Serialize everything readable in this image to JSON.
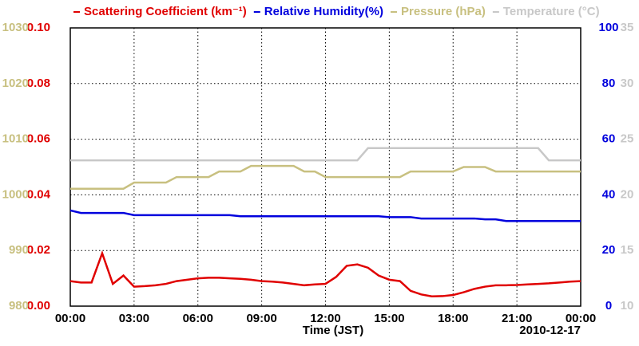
{
  "chart_data": {
    "type": "line",
    "x_label": "Time (JST)",
    "date": "2010-12-17",
    "x": [
      0,
      0.5,
      1,
      1.5,
      2,
      2.5,
      3,
      3.5,
      4,
      4.5,
      5,
      5.5,
      6,
      6.5,
      7,
      7.5,
      8,
      8.5,
      9,
      9.5,
      10,
      10.5,
      11,
      11.5,
      12,
      12.5,
      13,
      13.5,
      14,
      14.5,
      15,
      15.5,
      16,
      16.5,
      17,
      17.5,
      18,
      18.5,
      19,
      19.5,
      20,
      20.5,
      21,
      21.5,
      22,
      22.5,
      23,
      23.5,
      24
    ],
    "xlim": [
      0,
      24
    ],
    "xticks": [
      {
        "value": 0,
        "label": "00:00"
      },
      {
        "value": 3,
        "label": "03:00"
      },
      {
        "value": 6,
        "label": "06:00"
      },
      {
        "value": 9,
        "label": "09:00"
      },
      {
        "value": 12,
        "label": "12:00"
      },
      {
        "value": 15,
        "label": "15:00"
      },
      {
        "value": 18,
        "label": "18:00"
      },
      {
        "value": 21,
        "label": "21:00"
      },
      {
        "value": 24,
        "label": "00:00"
      }
    ],
    "ylim": [
      0,
      0.1
    ],
    "yticks": [
      {
        "value": 0,
        "label": "0.00"
      },
      {
        "value": 0.02,
        "label": "0.02"
      },
      {
        "value": 0.04,
        "label": "0.04"
      },
      {
        "value": 0.06,
        "label": "0.06"
      },
      {
        "value": 0.08,
        "label": "0.08"
      },
      {
        "value": 0.1,
        "label": "0.10"
      }
    ],
    "y2lim": [
      0,
      100
    ],
    "y2ticks": [
      0,
      20,
      40,
      60,
      80,
      100
    ],
    "y3lim": [
      980,
      1030
    ],
    "y3ticks": [
      980,
      990,
      1000,
      1010,
      1020,
      1030
    ],
    "y4lim": [
      10,
      35
    ],
    "y4ticks": [
      10,
      15,
      20,
      25,
      30,
      35
    ],
    "grid": true,
    "series": [
      {
        "name": "Scattering Coefficient (km⁻¹)",
        "color": "#e00000",
        "axis": "y",
        "values": [
          0.009,
          0.0085,
          0.0085,
          0.019,
          0.008,
          0.011,
          0.007,
          0.0072,
          0.0075,
          0.008,
          0.009,
          0.0095,
          0.01,
          0.0102,
          0.0102,
          0.01,
          0.0098,
          0.0095,
          0.009,
          0.0088,
          0.0085,
          0.008,
          0.0075,
          0.0078,
          0.008,
          0.0105,
          0.0145,
          0.015,
          0.0138,
          0.011,
          0.0095,
          0.009,
          0.0055,
          0.0042,
          0.0035,
          0.0036,
          0.004,
          0.005,
          0.0062,
          0.007,
          0.0075,
          0.0075,
          0.0076,
          0.0078,
          0.008,
          0.0082,
          0.0085,
          0.0088,
          0.009
        ]
      },
      {
        "name": "Relative Humidity(%)",
        "color": "#0000dd",
        "axis": "y2",
        "values": [
          34.4,
          33.5,
          33.5,
          33.5,
          33.5,
          33.5,
          32.7,
          32.7,
          32.7,
          32.7,
          32.7,
          32.7,
          32.7,
          32.7,
          32.7,
          32.7,
          32.3,
          32.3,
          32.3,
          32.3,
          32.3,
          32.3,
          32.3,
          32.3,
          32.3,
          32.3,
          32.3,
          32.3,
          32.3,
          32.3,
          32,
          32,
          32,
          31.5,
          31.5,
          31.5,
          31.5,
          31.5,
          31.5,
          31.2,
          31.2,
          30.6,
          30.6,
          30.6,
          30.6,
          30.6,
          30.6,
          30.6,
          30.6
        ]
      },
      {
        "name": "Pressure (hPa)",
        "color": "#c8c080",
        "axis": "y3",
        "values": [
          1001.1,
          1001.1,
          1001.1,
          1001.1,
          1001.1,
          1001.1,
          1002.2,
          1002.2,
          1002.2,
          1002.2,
          1003.2,
          1003.2,
          1003.2,
          1003.2,
          1004.2,
          1004.2,
          1004.2,
          1005.2,
          1005.2,
          1005.2,
          1005.2,
          1005.2,
          1004.2,
          1004.2,
          1003.2,
          1003.2,
          1003.2,
          1003.2,
          1003.2,
          1003.2,
          1003.2,
          1003.2,
          1004.2,
          1004.2,
          1004.2,
          1004.2,
          1004.2,
          1005,
          1005,
          1005,
          1004.2,
          1004.2,
          1004.2,
          1004.2,
          1004.2,
          1004.2,
          1004.2,
          1004.2,
          1004.2
        ]
      },
      {
        "name": "Temperature (°C)",
        "color": "#c8c8c8",
        "axis": "y4",
        "values": [
          23.1,
          23.1,
          23.1,
          23.1,
          23.1,
          23.1,
          23.1,
          23.1,
          23.1,
          23.1,
          23.1,
          23.1,
          23.1,
          23.1,
          23.1,
          23.1,
          23.1,
          23.1,
          23.1,
          23.1,
          23.1,
          23.1,
          23.1,
          23.1,
          23.1,
          23.1,
          23.1,
          23.1,
          24.2,
          24.2,
          24.2,
          24.2,
          24.2,
          24.2,
          24.2,
          24.2,
          24.2,
          24.2,
          24.2,
          24.2,
          24.2,
          24.2,
          24.2,
          24.2,
          24.2,
          23.1,
          23.1,
          23.1,
          23.1
        ]
      }
    ]
  }
}
